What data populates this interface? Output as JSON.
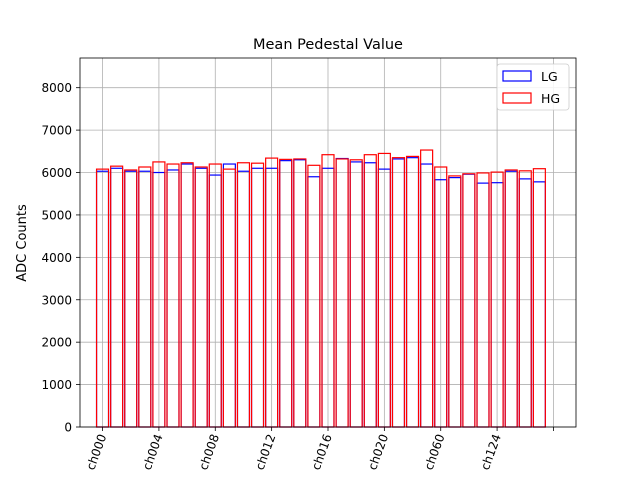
{
  "chart_data": {
    "type": "bar",
    "title": "Mean Pedestal Value",
    "xlabel": "",
    "ylabel": "ADC Counts",
    "ylim": [
      0,
      8700
    ],
    "yticks": [
      0,
      1000,
      2000,
      3000,
      4000,
      5000,
      6000,
      7000,
      8000
    ],
    "xtick_labels": [
      "ch000",
      "ch004",
      "ch008",
      "ch012",
      "ch016",
      "ch020",
      "ch060",
      "ch124",
      ""
    ],
    "xtick_positions": [
      0,
      4,
      8,
      12,
      16,
      20,
      24,
      28,
      32
    ],
    "grid": true,
    "legend_position": "top-right",
    "series": [
      {
        "name": "LG",
        "color": "#0000ff",
        "values": [
          6030,
          6100,
          6030,
          6030,
          6000,
          6060,
          6200,
          6100,
          5940,
          6200,
          6030,
          6100,
          6100,
          6280,
          6300,
          5900,
          6100,
          6330,
          6250,
          6230,
          6080,
          6320,
          6350,
          6200,
          5830,
          5880,
          5960,
          5750,
          5760,
          6030,
          5850,
          5780
        ]
      },
      {
        "name": "HG",
        "color": "#ff0000",
        "values": [
          6080,
          6150,
          6060,
          6130,
          6250,
          6200,
          6230,
          6130,
          6200,
          6080,
          6230,
          6220,
          6340,
          6310,
          6320,
          6170,
          6420,
          6320,
          6300,
          6420,
          6450,
          6350,
          6380,
          6530,
          6130,
          5920,
          5970,
          5990,
          6010,
          6060,
          6040,
          6090
        ]
      }
    ]
  }
}
